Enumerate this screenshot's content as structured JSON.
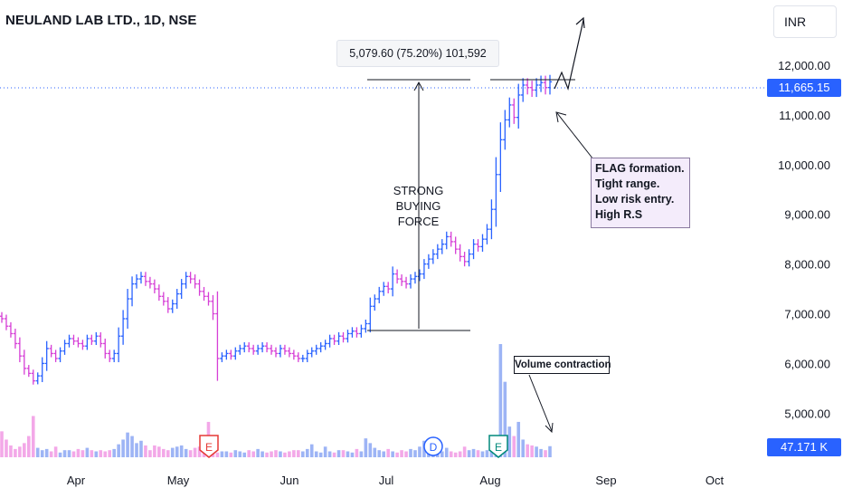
{
  "header": {
    "symbol_title": "NEULAND LAB LTD., 1D, NSE",
    "currency": "INR"
  },
  "annotations": {
    "measure_label": "5,079.60 (75.20%) 101,592",
    "buying_force": [
      "STRONG",
      "BUYING",
      "FORCE"
    ],
    "flag_note": [
      "FLAG formation.",
      "Tight range.",
      "Low risk entry.",
      "High R.S"
    ],
    "volume_note": "Volume contraction"
  },
  "price_axis": {
    "ticks": [
      "12,000.00",
      "11,000.00",
      "10,000.00",
      "9,000.00",
      "8,000.00",
      "7,000.00",
      "6,000.00",
      "5,000.00"
    ],
    "current_price": "11,665.15",
    "current_volume": "47.171 K"
  },
  "time_axis": {
    "ticks": [
      "Apr",
      "May",
      "Jun",
      "Jul",
      "Aug",
      "Sep",
      "Oct"
    ]
  },
  "event_markers": [
    {
      "label": "E",
      "color": "#e53935"
    },
    {
      "label": "D",
      "color": "#2962ff"
    },
    {
      "label": "E",
      "color": "#00897b"
    }
  ],
  "colors": {
    "up": "#2962ff",
    "down": "#d63fd6",
    "volume_up": "#9db4f5",
    "volume_down": "#f3a8e8",
    "accent": "#2962ff"
  },
  "chart_data": {
    "type": "ohlc",
    "title": "NEULAND LAB LTD., 1D, NSE",
    "ylim": [
      4300,
      12700
    ],
    "y_ticks": [
      12000,
      11000,
      10000,
      9000,
      8000,
      7000,
      6000,
      5000
    ],
    "x_ticks": [
      "Apr",
      "May",
      "Jun",
      "Jul",
      "Aug",
      "Sep",
      "Oct"
    ],
    "current_price": 11665.15,
    "current_volume_k": 47.171,
    "measure": {
      "change": 5079.6,
      "percent": 75.2,
      "volume": 101592,
      "from": 6700,
      "to": 11780
    },
    "closes": [
      6900,
      6750,
      6600,
      6400,
      6150,
      5900,
      5800,
      5650,
      5750,
      6000,
      6300,
      6200,
      6100,
      6250,
      6400,
      6500,
      6450,
      6400,
      6350,
      6500,
      6450,
      6550,
      6400,
      6200,
      6100,
      6200,
      6550,
      6900,
      7300,
      7600,
      7700,
      7750,
      7650,
      7600,
      7500,
      7350,
      7250,
      7100,
      7200,
      7400,
      7600,
      7750,
      7700,
      7600,
      7450,
      7350,
      7250,
      7000,
      6100,
      6150,
      6200,
      6150,
      6250,
      6300,
      6350,
      6300,
      6250,
      6300,
      6350,
      6300,
      6250,
      6200,
      6300,
      6250,
      6200,
      6150,
      6100,
      6100,
      6200,
      6250,
      6300,
      6350,
      6400,
      6500,
      6450,
      6550,
      6500,
      6600,
      6650,
      6600,
      6700,
      6800,
      7150,
      7300,
      7450,
      7550,
      7500,
      7800,
      7700,
      7650,
      7600,
      7700,
      7750,
      7800,
      8000,
      8100,
      8200,
      8300,
      8400,
      8550,
      8450,
      8300,
      8150,
      8050,
      8200,
      8400,
      8350,
      8500,
      8700,
      9100,
      9800,
      10500,
      10900,
      11200,
      10950,
      11400,
      11600,
      11550,
      11500,
      11600,
      11650,
      11550,
      11665
    ],
    "volumes_k": [
      110,
      75,
      50,
      35,
      45,
      60,
      90,
      175,
      40,
      30,
      35,
      25,
      45,
      20,
      30,
      30,
      25,
      35,
      30,
      40,
      30,
      25,
      30,
      25,
      30,
      35,
      55,
      75,
      105,
      90,
      60,
      70,
      50,
      30,
      50,
      45,
      35,
      30,
      40,
      45,
      50,
      35,
      30,
      40,
      45,
      40,
      150,
      45,
      20,
      25,
      25,
      20,
      30,
      25,
      20,
      30,
      25,
      35,
      25,
      20,
      25,
      30,
      25,
      20,
      25,
      30,
      30,
      25,
      35,
      55,
      25,
      20,
      45,
      25,
      20,
      30,
      30,
      25,
      20,
      35,
      25,
      80,
      60,
      40,
      30,
      25,
      35,
      25,
      20,
      30,
      25,
      35,
      30,
      45,
      70,
      35,
      40,
      30,
      25,
      40,
      25,
      20,
      25,
      45,
      30,
      35,
      30,
      25,
      30,
      30,
      55,
      480,
      320,
      130,
      90,
      150,
      75,
      55,
      50,
      45,
      35,
      30,
      47
    ]
  }
}
